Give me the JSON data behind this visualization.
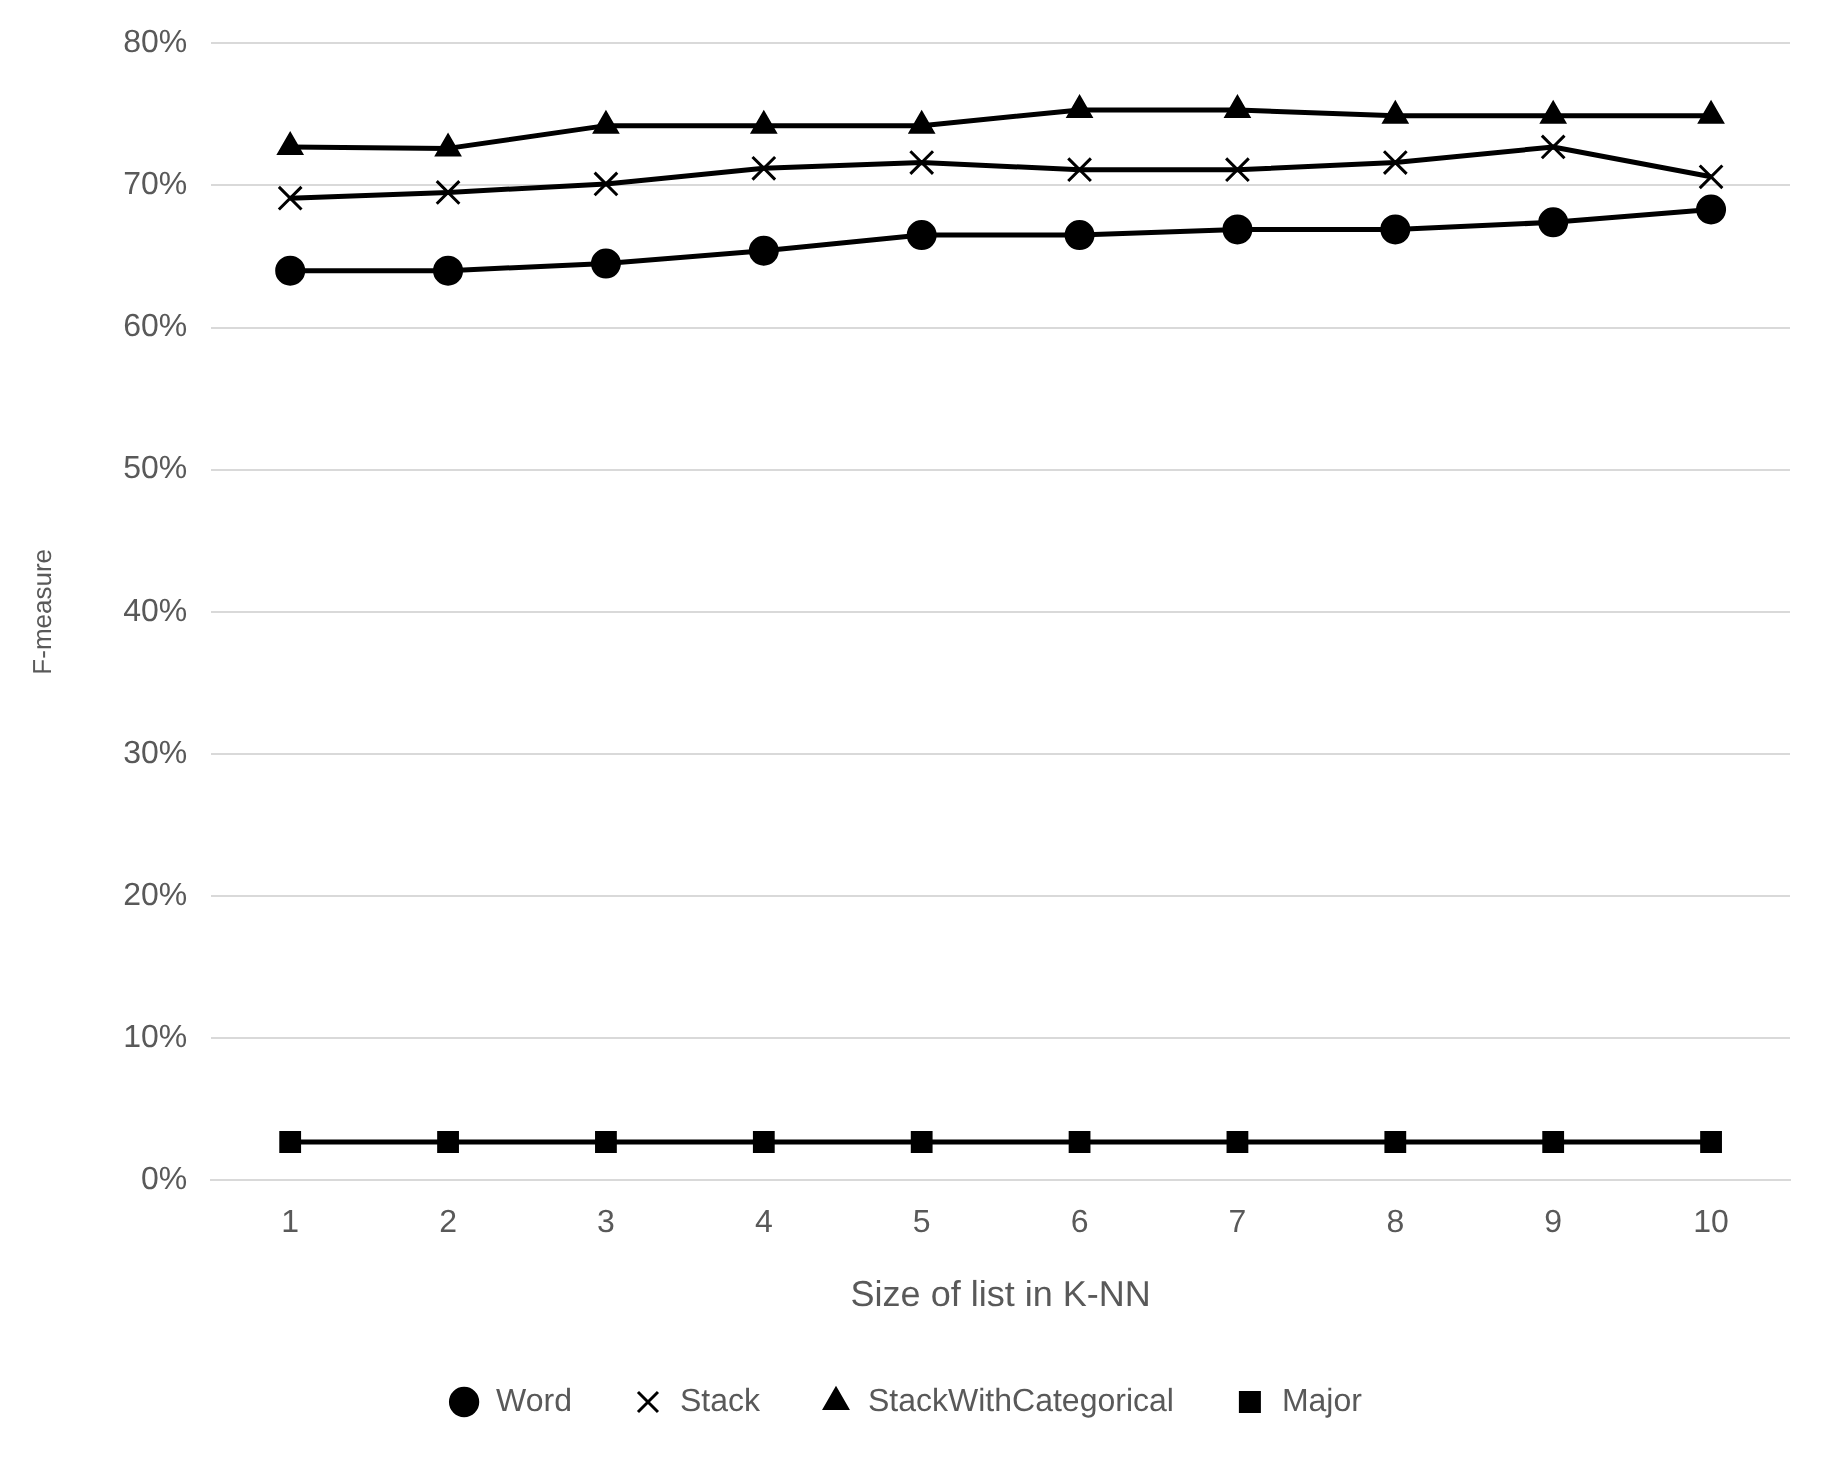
{
  "chart_data": {
    "type": "line",
    "xlabel": "Size of list in K-NN",
    "ylabel": "F-measure",
    "categories": [
      "1",
      "2",
      "3",
      "4",
      "5",
      "6",
      "7",
      "8",
      "9",
      "10"
    ],
    "ylim": [
      0,
      80
    ],
    "yticks": [
      {
        "value": 0,
        "label": "0%"
      },
      {
        "value": 10,
        "label": "10%"
      },
      {
        "value": 20,
        "label": "20%"
      },
      {
        "value": 30,
        "label": "30%"
      },
      {
        "value": 40,
        "label": "40%"
      },
      {
        "value": 50,
        "label": "50%"
      },
      {
        "value": 60,
        "label": "60%"
      },
      {
        "value": 70,
        "label": "70%"
      },
      {
        "value": 80,
        "label": "80%"
      }
    ],
    "grid": "y",
    "legend": "bottom",
    "line_style": "solid",
    "series": [
      {
        "name": "Word",
        "color": "#000000",
        "marker": "circle",
        "values": [
          64.0,
          64.0,
          64.5,
          65.4,
          66.5,
          66.5,
          66.9,
          66.9,
          67.4,
          68.3
        ]
      },
      {
        "name": "Stack",
        "color": "#000000",
        "marker": "cross",
        "values": [
          69.1,
          69.5,
          70.1,
          71.2,
          71.6,
          71.1,
          71.1,
          71.6,
          72.7,
          70.6
        ]
      },
      {
        "name": "StackWithCategorical",
        "color": "#000000",
        "marker": "triangle",
        "values": [
          72.7,
          72.6,
          74.2,
          74.2,
          74.2,
          75.3,
          75.3,
          74.9,
          74.9,
          74.9
        ]
      },
      {
        "name": "Major",
        "color": "#000000",
        "marker": "square",
        "values": [
          2.7,
          2.7,
          2.7,
          2.7,
          2.7,
          2.7,
          2.7,
          2.7,
          2.7,
          2.7
        ]
      }
    ]
  }
}
